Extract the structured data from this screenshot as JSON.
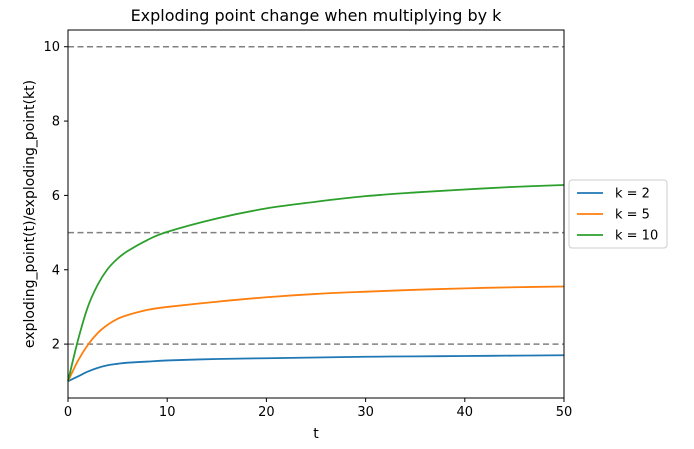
{
  "chart_data": {
    "type": "line",
    "title": "Exploding point change when multiplying by k",
    "xlabel": "t",
    "ylabel": "exploding_point(t)/exploding_point(kt)",
    "xlim": [
      0,
      50
    ],
    "ylim": [
      0.55,
      10.45
    ],
    "xticks": [
      0,
      10,
      20,
      30,
      40,
      50
    ],
    "yticks": [
      2,
      4,
      6,
      8,
      10
    ],
    "grid": false,
    "legend_position": "outside-right",
    "reference_lines": [
      {
        "y": 2,
        "style": "dashed",
        "color": "#808080"
      },
      {
        "y": 5,
        "style": "dashed",
        "color": "#808080"
      },
      {
        "y": 10,
        "style": "dashed",
        "color": "#808080"
      }
    ],
    "series": [
      {
        "name": "k = 2",
        "color": "#1f77b4",
        "x": [
          0,
          1,
          2,
          3,
          4,
          5,
          6,
          8,
          10,
          15,
          20,
          25,
          30,
          35,
          40,
          45,
          50
        ],
        "y": [
          1.0,
          1.13,
          1.26,
          1.36,
          1.43,
          1.47,
          1.5,
          1.53,
          1.56,
          1.6,
          1.62,
          1.64,
          1.66,
          1.67,
          1.68,
          1.69,
          1.7
        ]
      },
      {
        "name": "k = 5",
        "color": "#ff7f0e",
        "x": [
          0,
          1,
          2,
          3,
          4,
          5,
          6,
          8,
          10,
          15,
          20,
          25,
          30,
          35,
          40,
          45,
          50
        ],
        "y": [
          1.0,
          1.55,
          1.98,
          2.3,
          2.52,
          2.68,
          2.78,
          2.92,
          3.0,
          3.14,
          3.26,
          3.35,
          3.41,
          3.46,
          3.5,
          3.53,
          3.55
        ]
      },
      {
        "name": "k = 10",
        "color": "#2ca02c",
        "x": [
          0,
          1,
          2,
          3,
          4,
          5,
          6,
          8,
          10,
          15,
          20,
          25,
          30,
          35,
          40,
          45,
          50
        ],
        "y": [
          1.0,
          2.1,
          3.0,
          3.6,
          4.02,
          4.3,
          4.5,
          4.8,
          5.02,
          5.38,
          5.65,
          5.83,
          5.98,
          6.08,
          6.16,
          6.23,
          6.28
        ]
      }
    ]
  }
}
